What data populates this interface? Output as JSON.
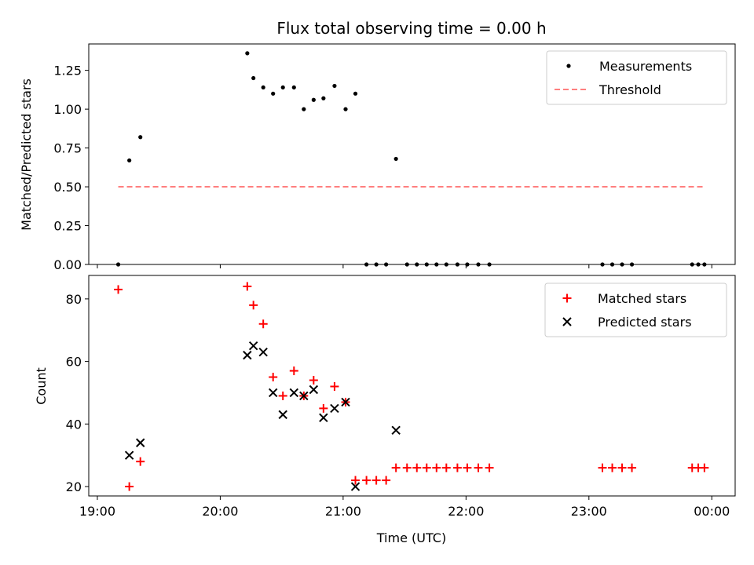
{
  "chart_data": [
    {
      "type": "scatter",
      "title": "Flux total observing time = 0.00 h",
      "ylabel": "Matched/Predicted stars",
      "xlabel": "",
      "x_unit": "hours UTC",
      "xlim": [
        18.93,
        24.19
      ],
      "ylim": [
        0.0,
        1.42
      ],
      "yticks": [
        0.0,
        0.25,
        0.5,
        0.75,
        1.0,
        1.25
      ],
      "ytick_labels": [
        "0.00",
        "0.25",
        "0.50",
        "0.75",
        "1.00",
        "1.25"
      ],
      "xticks": [
        19,
        20,
        21,
        22,
        23,
        24
      ],
      "show_xtick_labels": false,
      "legend_placement": "top-right",
      "series": [
        {
          "name": "Measurements",
          "kind": "points",
          "color": "#000000",
          "x": [
            19.17,
            19.26,
            19.35,
            20.22,
            20.27,
            20.35,
            20.43,
            20.51,
            20.6,
            20.68,
            20.76,
            20.84,
            20.93,
            21.02,
            21.1,
            21.19,
            21.27,
            21.35,
            21.43,
            21.52,
            21.6,
            21.68,
            21.76,
            21.84,
            21.93,
            22.01,
            22.1,
            22.19,
            23.11,
            23.19,
            23.27,
            23.35,
            23.84,
            23.89,
            23.94
          ],
          "y": [
            0.0,
            0.67,
            0.82,
            1.36,
            1.2,
            1.14,
            1.1,
            1.14,
            1.14,
            1.0,
            1.06,
            1.07,
            1.15,
            1.0,
            1.1,
            0.0,
            0.0,
            0.0,
            0.68,
            0.0,
            0.0,
            0.0,
            0.0,
            0.0,
            0.0,
            0.0,
            0.0,
            0.0,
            0.0,
            0.0,
            0.0,
            0.0,
            0.0,
            0.0,
            0.0
          ]
        },
        {
          "name": "Threshold",
          "kind": "dashed-line",
          "color": "#ff7f7f",
          "x": [
            19.17,
            23.94
          ],
          "y": [
            0.5,
            0.5
          ]
        }
      ]
    },
    {
      "type": "scatter",
      "title": "",
      "ylabel": "Count",
      "xlabel": "Time (UTC)",
      "x_unit": "hours UTC",
      "xlim": [
        18.93,
        24.19
      ],
      "ylim": [
        17.0,
        87.5
      ],
      "yticks": [
        20,
        40,
        60,
        80
      ],
      "ytick_labels": [
        "20",
        "40",
        "60",
        "80"
      ],
      "xticks": [
        19,
        20,
        21,
        22,
        23,
        24
      ],
      "xtick_labels": [
        "19:00",
        "20:00",
        "21:00",
        "22:00",
        "23:00",
        "00:00"
      ],
      "legend_placement": "top-right",
      "series": [
        {
          "name": "Matched stars",
          "marker": "plus",
          "color": "#ff0000",
          "x": [
            19.17,
            19.26,
            19.35,
            20.22,
            20.27,
            20.35,
            20.43,
            20.51,
            20.6,
            20.68,
            20.76,
            20.84,
            20.93,
            21.02,
            21.1,
            21.19,
            21.27,
            21.35,
            21.43,
            21.52,
            21.6,
            21.68,
            21.76,
            21.84,
            21.93,
            22.01,
            22.1,
            22.19,
            23.11,
            23.19,
            23.27,
            23.35,
            23.84,
            23.89,
            23.94
          ],
          "y": [
            83,
            20,
            28,
            84,
            78,
            72,
            55,
            49,
            57,
            49,
            54,
            45,
            52,
            47,
            22,
            22,
            22,
            22,
            26,
            26,
            26,
            26,
            26,
            26,
            26,
            26,
            26,
            26,
            26,
            26,
            26,
            26,
            26,
            26,
            26
          ]
        },
        {
          "name": "Predicted stars",
          "marker": "x",
          "color": "#000000",
          "x": [
            19.26,
            19.35,
            20.22,
            20.27,
            20.35,
            20.43,
            20.51,
            20.6,
            20.68,
            20.76,
            20.84,
            20.93,
            21.02,
            21.1,
            21.43
          ],
          "y": [
            30,
            34,
            62,
            65,
            63,
            50,
            43,
            50,
            49,
            51,
            42,
            45,
            47,
            20,
            38
          ]
        }
      ]
    }
  ]
}
